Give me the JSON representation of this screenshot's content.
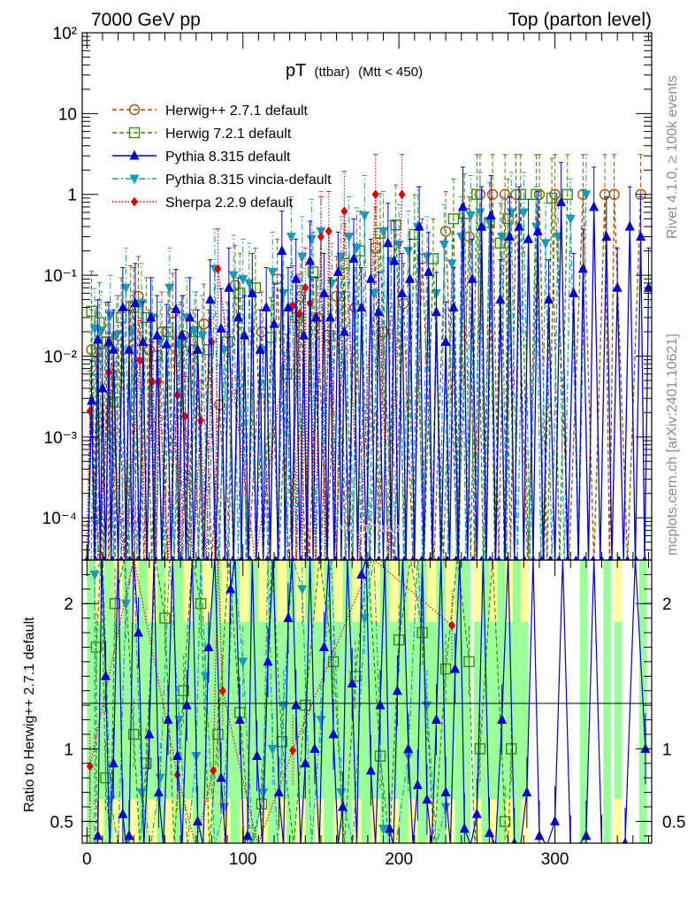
{
  "chart_data": {
    "type": "line",
    "header_left": "7000 GeV pp",
    "header_right": "Top (parton level)",
    "title": "pT",
    "title_sub1": "(ttbar)",
    "title_sub2": "(Mtt < 450)",
    "ylabel_ratio": "Ratio to Herwig++ 2.7.1 default",
    "side_top": "Rivet 4.1.0, ≥ 100k events",
    "side_bottom": "mcplots.cern.ch [arXiv:2401.10621]",
    "watermark": "MC_TTBAR",
    "main_ylim": [
      3e-05,
      100
    ],
    "main_yscale": "log",
    "main_yticks": [
      "10²",
      "10",
      "1",
      "10⁻¹",
      "10⁻²",
      "10⁻³",
      "10⁻⁴"
    ],
    "ratio_ylim": [
      0.35,
      2.3
    ],
    "ratio_yticks": [
      "2",
      "1",
      "0.5"
    ],
    "xlim": [
      -3,
      362
    ],
    "xticks": [
      "0",
      "100",
      "200",
      "300"
    ],
    "colors": {
      "herwigpp": "#a0520a",
      "herwig7": "#3a8a0a",
      "pythia": "#0000cc",
      "vincia": "#1a9ab8",
      "sherpa": "#dd0000",
      "band_green": "#99ff99",
      "band_yellow": "#ffff99"
    },
    "series": [
      {
        "name": "Herwig++ 2.7.1 default",
        "key": "herwigpp",
        "marker": "open-circle",
        "dash": "dashed",
        "x": [
          3,
          6,
          12,
          16,
          20,
          28,
          33,
          40,
          48,
          55,
          62,
          68,
          75,
          85,
          95,
          112,
          122,
          137,
          148,
          160,
          172,
          185,
          190,
          203,
          215,
          230,
          245,
          252,
          260,
          268,
          275,
          290,
          300,
          318,
          332,
          338,
          355
        ],
        "y": [
          0.012,
          0.011,
          0.015,
          0.006,
          0.018,
          0.042,
          0.055,
          0.012,
          0.02,
          0.034,
          0.018,
          0.012,
          0.025,
          0.0025,
          0.075,
          0.02,
          0.09,
          0.055,
          0.03,
          0.055,
          0.04,
          0.22,
          0.02,
          0.045,
          0.16,
          0.35,
          0.3,
          1,
          1,
          1,
          1,
          1,
          1,
          1,
          1,
          1,
          1
        ]
      },
      {
        "name": "Herwig 7.2.1 default",
        "key": "herwig7",
        "marker": "open-square",
        "dash": "dashed",
        "x": [
          3,
          8,
          13,
          18,
          22,
          30,
          38,
          45,
          52,
          60,
          70,
          78,
          90,
          98,
          108,
          118,
          128,
          135,
          145,
          155,
          165,
          175,
          188,
          198,
          210,
          222,
          235,
          242,
          250,
          258,
          265,
          270,
          278,
          288,
          298,
          308
        ],
        "y": [
          0.036,
          0.026,
          0.015,
          0.0027,
          0.03,
          0.04,
          0.03,
          0.01,
          0.02,
          0.015,
          0.02,
          0.012,
          0.015,
          0.06,
          0.07,
          0.017,
          0.006,
          0.03,
          0.11,
          0.018,
          0.14,
          0.2,
          0.33,
          0.42,
          0.32,
          0.16,
          0.5,
          0.58,
          1,
          0.45,
          0.25,
          0.5,
          1,
          1,
          0.9,
          1
        ]
      },
      {
        "name": "Pythia 8.315 default",
        "key": "pythia",
        "marker": "filled-triangle",
        "dash": "solid",
        "x": [
          3,
          7,
          10,
          14,
          17,
          23,
          27,
          31,
          36,
          41,
          45,
          51,
          57,
          61,
          66,
          71,
          79,
          86,
          91,
          97,
          101,
          106,
          111,
          115,
          120,
          125,
          129,
          134,
          139,
          143,
          147,
          152,
          156,
          161,
          165,
          171,
          176,
          182,
          187,
          193,
          197,
          202,
          207,
          213,
          219,
          224,
          230,
          235,
          241,
          247,
          253,
          259,
          265,
          271,
          277,
          283,
          289,
          296,
          304,
          312,
          318,
          325,
          333,
          340,
          348,
          355,
          360
        ],
        "y": [
          0.0028,
          0.016,
          0.004,
          0.015,
          0.012,
          0.04,
          0.012,
          0.045,
          0.015,
          0.03,
          0.018,
          0.014,
          0.038,
          0.018,
          0.03,
          0.012,
          0.05,
          0.022,
          0.07,
          0.03,
          0.018,
          0.06,
          0.012,
          0.04,
          0.025,
          0.2,
          0.04,
          0.09,
          0.018,
          0.15,
          0.03,
          0.06,
          0.03,
          0.11,
          0.02,
          0.16,
          0.04,
          0.09,
          0.035,
          0.25,
          0.15,
          0.06,
          0.09,
          0.4,
          0.11,
          0.035,
          0.015,
          0.04,
          0.7,
          0.09,
          0.4,
          0.55,
          0.05,
          0.3,
          0.4,
          0.28,
          0.35,
          0.05,
          0.8,
          0.06,
          0.12,
          0.7,
          0.3,
          0.07,
          0.4,
          0.3,
          0.07
        ]
      },
      {
        "name": "Pythia 8.315 vincia-default",
        "key": "vincia",
        "marker": "filled-inverted-triangle",
        "dash": "dashdot",
        "x": [
          5,
          9,
          15,
          19,
          25,
          29,
          35,
          42,
          47,
          53,
          59,
          64,
          69,
          74,
          82,
          88,
          94,
          100,
          104,
          113,
          119,
          126,
          131,
          138,
          144,
          150,
          157,
          163,
          168,
          173,
          178,
          184,
          190,
          195,
          200,
          206,
          212,
          218,
          224,
          229,
          234,
          240,
          246,
          252,
          258,
          266,
          272,
          280,
          288,
          294,
          302,
          310,
          320
        ],
        "y": [
          0.022,
          0.02,
          0.032,
          0.018,
          0.07,
          0.02,
          0.045,
          0.03,
          0.015,
          0.07,
          0.014,
          0.03,
          0.02,
          0.018,
          0.12,
          0.012,
          0.1,
          0.09,
          0.08,
          0.012,
          0.11,
          0.06,
          0.3,
          0.17,
          0.28,
          0.35,
          0.08,
          0.17,
          0.3,
          0.22,
          0.55,
          0.06,
          0.35,
          0.15,
          0.24,
          0.2,
          0.4,
          0.17,
          0.06,
          0.24,
          0.14,
          0.3,
          0.55,
          0.6,
          0.45,
          0.3,
          0.6,
          0.6,
          0.4,
          0.25,
          0.3,
          0.5,
          1
        ]
      },
      {
        "name": "Sherpa 2.2.9 default",
        "key": "sherpa",
        "marker": "filled-diamond",
        "dash": "dotted",
        "x": [
          2,
          14,
          34,
          42,
          46,
          58,
          63,
          73,
          80,
          84,
          132,
          136,
          140,
          143,
          150,
          155,
          165,
          185,
          202
        ],
        "y": [
          0.0021,
          0.0062,
          0.0088,
          0.0048,
          0.0048,
          0.0033,
          0.0018,
          0.0016,
          0.015,
          0.12,
          0.042,
          0.033,
          0.07,
          0.045,
          0.3,
          0.35,
          0.62,
          1.0,
          1.0
        ]
      }
    ],
    "ratio_points": [
      {
        "key": "herwig7",
        "x": [
          6,
          12,
          18,
          30,
          38,
          50,
          62,
          73,
          84,
          98,
          112,
          125,
          140,
          158,
          172,
          188,
          200,
          215,
          230,
          245,
          252,
          268,
          272
        ],
        "y": [
          1.7,
          0.8,
          2.0,
          1.1,
          0.9,
          1.9,
          1.4,
          2.0,
          1.1,
          1.25,
          0.62,
          1.05,
          1.3,
          1.6,
          1.5,
          0.95,
          1.75,
          1.8,
          1.55,
          1.6,
          1.0,
          0.5,
          1.0
        ]
      },
      {
        "key": "pythia",
        "x": [
          7,
          12,
          17,
          23,
          27,
          33,
          40,
          46,
          52,
          58,
          64,
          71,
          78,
          86,
          92,
          98,
          103,
          109,
          116,
          123,
          129,
          134,
          140,
          146,
          152,
          158,
          164,
          170,
          176,
          182,
          188,
          194,
          199,
          206,
          212,
          218,
          224,
          230,
          236,
          242,
          250,
          258,
          266,
          274,
          282,
          290,
          300,
          310,
          320,
          330,
          345,
          358
        ],
        "y": [
          0.4,
          1.5,
          0.9,
          0.55,
          0.4,
          1.8,
          1.1,
          0.7,
          1.2,
          0.95,
          1.3,
          0.5,
          1.7,
          0.8,
          2.1,
          1.2,
          0.4,
          0.95,
          1.6,
          0.7,
          1.9,
          1.3,
          0.9,
          1.0,
          1.7,
          1.1,
          0.6,
          1.45,
          2.2,
          0.85,
          1.3,
          0.45,
          1.4,
          1.0,
          0.75,
          0.65,
          1.2,
          0.7,
          1.55,
          0.45,
          0.55,
          0.42,
          1.2,
          0.35,
          0.7,
          0.4,
          0.5,
          0.3,
          0.4,
          0.3,
          0.35,
          1.0
        ]
      },
      {
        "key": "vincia",
        "x": [
          5,
          15,
          25,
          35,
          47,
          59,
          70,
          76,
          88,
          100,
          113,
          119,
          126,
          138,
          150,
          163,
          178,
          190,
          206,
          218,
          230
        ],
        "y": [
          2.2,
          0.65,
          2.0,
          0.7,
          0.8,
          1.2,
          0.95,
          1.5,
          0.6,
          1.6,
          0.7,
          1.0,
          1.3,
          2.1,
          1.2,
          0.7,
          1.9,
          0.45,
          0.95,
          1.3,
          0.6
        ]
      },
      {
        "key": "sherpa",
        "x": [
          2,
          58,
          81,
          87,
          132,
          234
        ],
        "y": [
          0.88,
          0.82,
          0.85,
          1.4,
          0.99,
          1.85
        ]
      }
    ],
    "band_bins": [
      [
        0,
        5,
        0
      ],
      [
        5,
        11,
        1
      ],
      [
        11,
        17,
        0
      ],
      [
        17,
        23,
        1
      ],
      [
        23,
        28,
        0
      ],
      [
        28,
        33,
        1
      ],
      [
        33,
        39,
        0
      ],
      [
        39,
        45,
        1
      ],
      [
        45,
        50,
        0
      ],
      [
        50,
        56,
        1
      ],
      [
        56,
        62,
        0
      ],
      [
        62,
        68,
        1
      ],
      [
        68,
        74,
        0
      ],
      [
        74,
        80,
        1
      ],
      [
        80,
        86,
        0
      ],
      [
        86,
        92,
        1
      ],
      [
        92,
        98,
        0
      ],
      [
        98,
        104,
        1
      ],
      [
        104,
        110,
        0
      ],
      [
        110,
        116,
        1
      ],
      [
        116,
        122,
        0
      ],
      [
        122,
        128,
        1
      ],
      [
        128,
        134,
        0
      ],
      [
        134,
        140,
        1
      ],
      [
        140,
        146,
        0
      ],
      [
        146,
        152,
        1
      ],
      [
        152,
        158,
        0
      ],
      [
        158,
        164,
        1
      ],
      [
        164,
        170,
        0
      ],
      [
        170,
        176,
        1
      ],
      [
        176,
        182,
        0
      ],
      [
        182,
        188,
        1
      ],
      [
        188,
        194,
        0
      ],
      [
        194,
        200,
        1
      ],
      [
        200,
        206,
        0
      ],
      [
        206,
        212,
        1
      ],
      [
        212,
        218,
        0
      ],
      [
        218,
        224,
        1
      ],
      [
        224,
        230,
        0
      ],
      [
        230,
        236,
        1
      ],
      [
        236,
        241,
        0
      ],
      [
        241,
        246,
        0
      ],
      [
        248,
        253,
        1
      ],
      [
        253,
        258,
        0
      ],
      [
        258,
        263,
        1
      ],
      [
        263,
        268,
        0
      ],
      [
        268,
        273,
        1
      ],
      [
        273,
        278,
        0
      ],
      [
        278,
        283,
        1
      ],
      [
        316,
        321,
        0
      ],
      [
        331,
        336,
        0
      ],
      [
        338,
        343,
        1
      ],
      [
        354,
        359,
        0
      ]
    ]
  }
}
